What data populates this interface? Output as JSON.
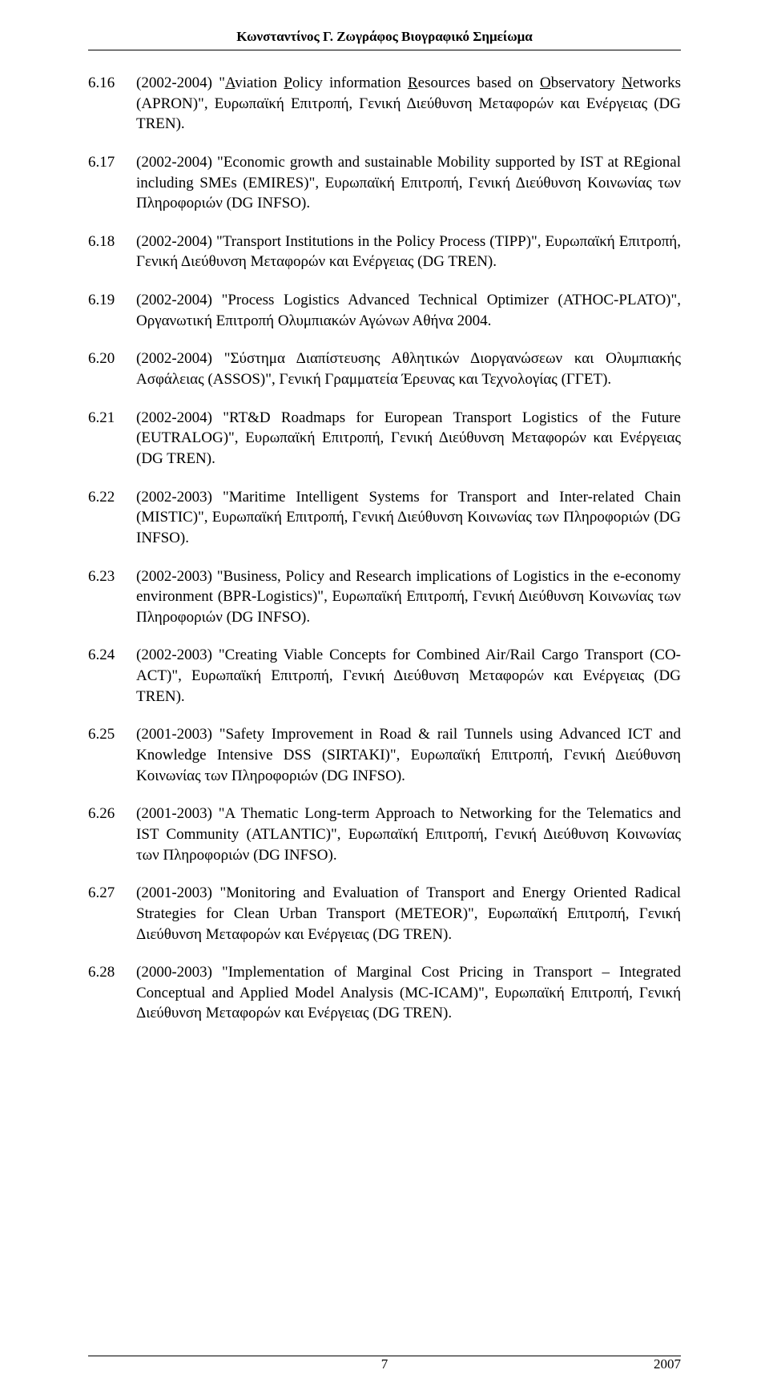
{
  "header": "Κωνσταντίνος Γ. Ζωγράφος Βιογραφικό Σημείωμα",
  "entries": [
    {
      "num": "6.16",
      "prefix": "(2002-2004) \"",
      "a": "A",
      "mid1": "viation ",
      "p": "P",
      "mid2": "olicy information ",
      "r": "R",
      "mid3": "esources based on ",
      "o": "O",
      "mid4": "bservatory ",
      "n": "N",
      "tail": "etworks (APRON)\", Ευρωπαϊκή Επιτροπή, Γενική Διεύθυνση Μεταφορών και Ενέργειας (DG TREN)."
    },
    {
      "num": "6.17",
      "text": "(2002-2004) \"Economic growth and sustainable Mobility supported by IST at REgional including SMEs (EMIRES)\", Ευρωπαϊκή Επιτροπή, Γενική Διεύθυνση Κοινωνίας των Πληροφοριών (DG INFSO)."
    },
    {
      "num": "6.18",
      "text": "(2002-2004) \"Transport Institutions in the Policy Process (TIPP)\", Ευρωπαϊκή Επιτροπή, Γενική Διεύθυνση Μεταφορών και Ενέργειας (DG TREN)."
    },
    {
      "num": "6.19",
      "text": "(2002-2004) \"Process Logistics Advanced Technical Optimizer (ATHOC-PLATO)\", Οργανωτική Επιτροπή Ολυμπιακών Αγώνων Αθήνα 2004."
    },
    {
      "num": "6.20",
      "text": "(2002-2004) \"Σύστημα Διαπίστευσης Αθλητικών Διοργανώσεων και Ολυμπιακής Ασφάλειας (ASSOS)\", Γενική Γραμματεία Έρευνας και Τεχνολογίας (ΓΓΕΤ)."
    },
    {
      "num": "6.21",
      "text": "(2002-2004) \"RT&D Roadmaps for European Transport Logistics of the Future (EUTRALOG)\", Ευρωπαϊκή Επιτροπή, Γενική Διεύθυνση Μεταφορών και Ενέργειας (DG TREN)."
    },
    {
      "num": "6.22",
      "text": "(2002-2003) \"Maritime Intelligent Systems for Transport and Inter-related Chain (MISTIC)\", Ευρωπαϊκή Επιτροπή, Γενική Διεύθυνση Κοινωνίας των Πληροφοριών (DG INFSO)."
    },
    {
      "num": "6.23",
      "text": "(2002-2003) \"Business, Policy and Research implications of Logistics in the e-economy environment (BPR-Logistics)\", Ευρωπαϊκή Επιτροπή, Γενική Διεύθυνση Κοινωνίας των Πληροφοριών (DG INFSO)."
    },
    {
      "num": "6.24",
      "text": "(2002-2003) \"Creating Viable Concepts for Combined Air/Rail Cargo Transport (CO-ACT)\", Ευρωπαϊκή Επιτροπή, Γενική Διεύθυνση Μεταφορών και Ενέργειας (DG TREN)."
    },
    {
      "num": "6.25",
      "text": "(2001-2003) \"Safety Improvement in Road & rail Tunnels using Advanced ICT and Knowledge Intensive DSS (SIRTAKI)\", Ευρωπαϊκή Επιτροπή, Γενική Διεύθυνση Κοινωνίας των Πληροφοριών (DG INFSO)."
    },
    {
      "num": "6.26",
      "text": "(2001-2003) \"A Thematic Long-term Approach to Networking for the Telematics and IST Community (ATLANTIC)\", Ευρωπαϊκή Επιτροπή, Γενική Διεύθυνση Κοινωνίας των Πληροφοριών (DG INFSO)."
    },
    {
      "num": "6.27",
      "text": "(2001-2003) \"Monitoring and Evaluation of Transport and Energy Oriented Radical Strategies for Clean Urban Transport (METEOR)\", Ευρωπαϊκή Επιτροπή, Γενική Διεύθυνση Μεταφορών και Ενέργειας (DG TREN)."
    },
    {
      "num": "6.28",
      "text": "(2000-2003) \"Implementation of Marginal Cost Pricing in Transport – Integrated Conceptual and Applied Model Analysis (MC-ICAM)\", Ευρωπαϊκή Επιτροπή, Γενική Διεύθυνση Μεταφορών και Ενέργειας (DG TREN)."
    }
  ],
  "page_number": "7",
  "year": "2007"
}
